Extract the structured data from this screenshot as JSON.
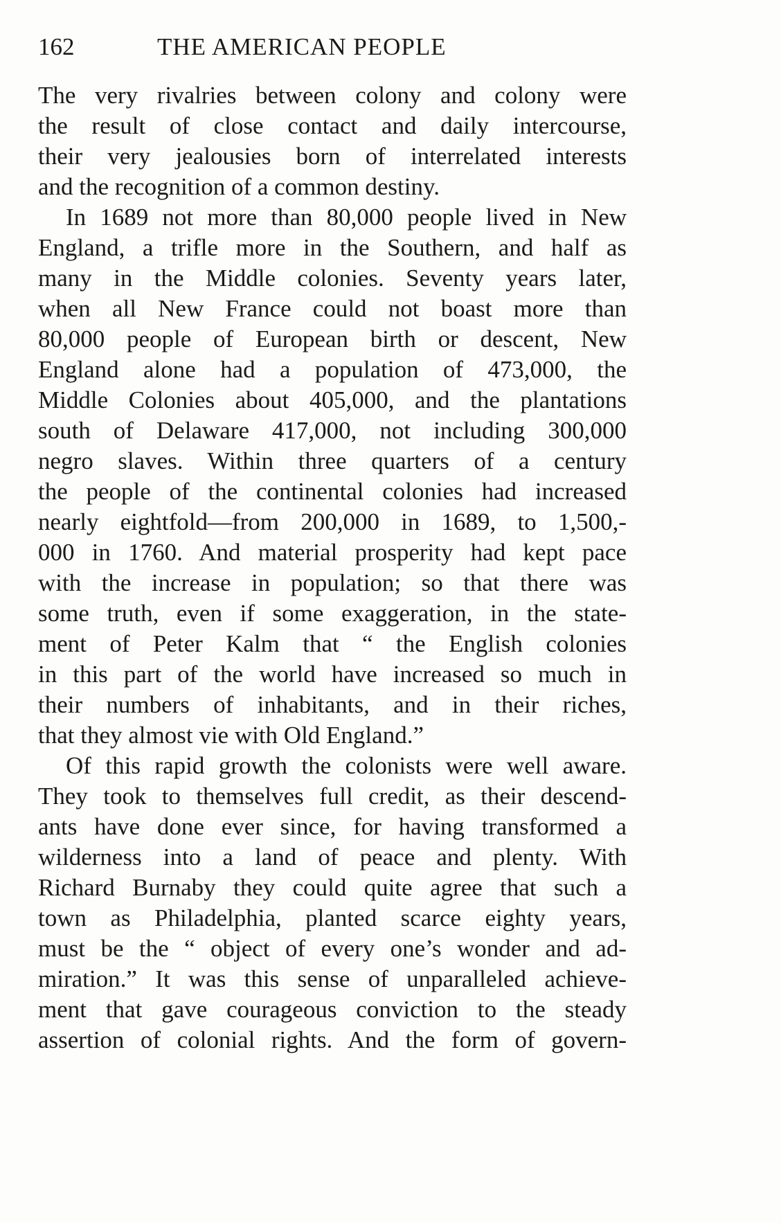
{
  "header": {
    "page_number": "162",
    "running_title": "THE AMERICAN PEOPLE"
  },
  "lines": [
    {
      "text": "The very rivalries between colony and colony were"
    },
    {
      "text": "the result of close contact and daily intercourse,"
    },
    {
      "text": "their very jealousies born of interrelated interests"
    },
    {
      "text": "and the recognition of a common destiny.",
      "last": true
    },
    {
      "text": "In 1689 not more than 80,000 people lived in New",
      "indent": true
    },
    {
      "text": "England, a trifle more in the Southern, and half as"
    },
    {
      "text": "many in the Middle colonies. Seventy years later,"
    },
    {
      "text": "when all New France could not boast more than"
    },
    {
      "text": "80,000 people of European birth or descent, New"
    },
    {
      "text": "England alone had a population of 473,000, the"
    },
    {
      "text": "Middle Colonies about 405,000, and the plantations"
    },
    {
      "text": "south of Delaware 417,000, not including 300,000"
    },
    {
      "text": "negro slaves. Within three quarters of a century"
    },
    {
      "text": "the people of the continental colonies had increased"
    },
    {
      "text": "nearly eightfold—from 200,000 in 1689, to 1,500,-"
    },
    {
      "text": "000 in 1760. And material prosperity had kept pace"
    },
    {
      "text": "with the increase in population; so that there was"
    },
    {
      "text": "some truth, even if some exaggeration, in the state-"
    },
    {
      "text": "ment of Peter Kalm that “ the English colonies"
    },
    {
      "text": "in this part of the world have increased so much in"
    },
    {
      "text": "their numbers of inhabitants, and in their riches,"
    },
    {
      "text": "that they almost vie with Old England.”",
      "last": true
    },
    {
      "text": "Of this rapid growth the colonists were well aware.",
      "indent": true
    },
    {
      "text": "They took to themselves full credit, as their descend-"
    },
    {
      "text": "ants have done ever since, for having transformed a"
    },
    {
      "text": "wilderness into a land of peace and plenty. With"
    },
    {
      "text": "Richard Burnaby they could quite agree that such a"
    },
    {
      "text": "town as Philadelphia, planted scarce eighty years,"
    },
    {
      "text": "must be the “ object of every one’s wonder and ad-"
    },
    {
      "text": "miration.” It was this sense of unparalleled achieve-"
    },
    {
      "text": "ment that gave courageous conviction to the steady"
    },
    {
      "text": "assertion of colonial rights. And the form of govern-"
    }
  ]
}
